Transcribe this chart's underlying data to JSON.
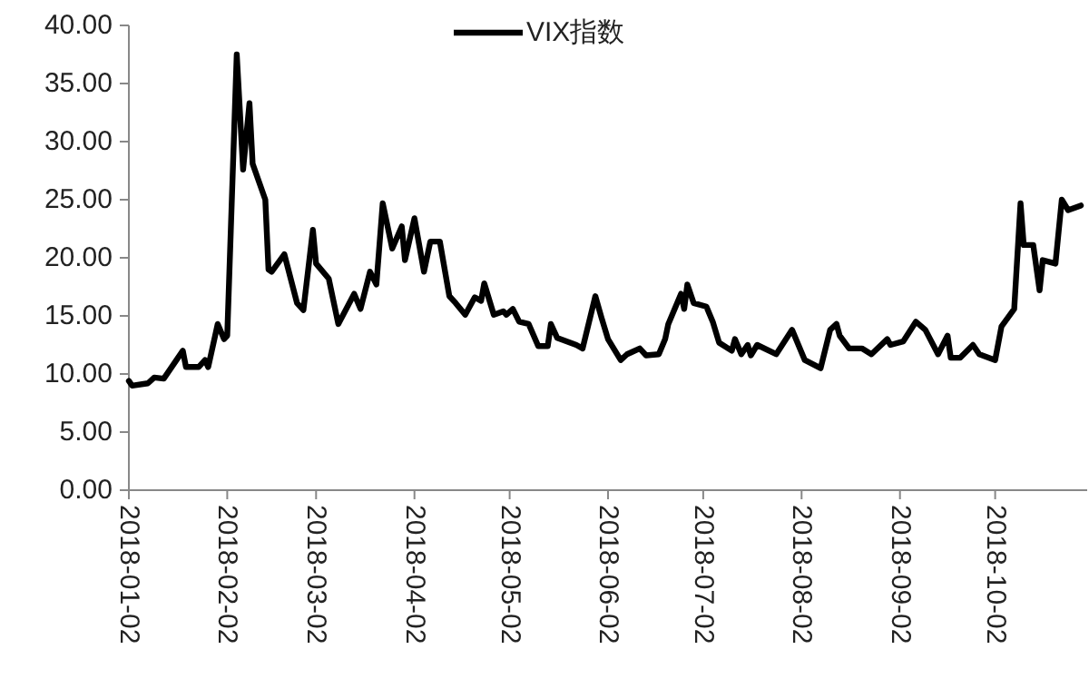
{
  "chart_data": {
    "type": "line",
    "legend": "top",
    "x": [
      "2018-01-02",
      "2018-01-03",
      "2018-01-08",
      "2018-01-10",
      "2018-01-13",
      "2018-01-19",
      "2018-01-20",
      "2018-01-24",
      "2018-01-26",
      "2018-01-27",
      "2018-01-30",
      "2018-02-01",
      "2018-02-02",
      "2018-02-05",
      "2018-02-07",
      "2018-02-09",
      "2018-02-10",
      "2018-02-14",
      "2018-02-15",
      "2018-02-16",
      "2018-02-20",
      "2018-02-24",
      "2018-02-26",
      "2018-03-01",
      "2018-03-02",
      "2018-03-06",
      "2018-03-09",
      "2018-03-14",
      "2018-03-16",
      "2018-03-19",
      "2018-03-21",
      "2018-03-23",
      "2018-03-26",
      "2018-03-29",
      "2018-03-30",
      "2018-04-02",
      "2018-04-05",
      "2018-04-07",
      "2018-04-10",
      "2018-04-13",
      "2018-04-15",
      "2018-04-18",
      "2018-04-21",
      "2018-04-23",
      "2018-04-24",
      "2018-04-27",
      "2018-04-30",
      "2018-05-01",
      "2018-05-03",
      "2018-05-05",
      "2018-05-08",
      "2018-05-11",
      "2018-05-14",
      "2018-05-15",
      "2018-05-17",
      "2018-05-23",
      "2018-05-25",
      "2018-05-29",
      "2018-05-31",
      "2018-06-02",
      "2018-06-06",
      "2018-06-08",
      "2018-06-12",
      "2018-06-14",
      "2018-06-18",
      "2018-06-20",
      "2018-06-21",
      "2018-06-25",
      "2018-06-26",
      "2018-06-27",
      "2018-06-29",
      "2018-07-03",
      "2018-07-05",
      "2018-07-07",
      "2018-07-11",
      "2018-07-12",
      "2018-07-14",
      "2018-07-16",
      "2018-07-17",
      "2018-07-19",
      "2018-07-25",
      "2018-07-30",
      "2018-08-01",
      "2018-08-03",
      "2018-08-08",
      "2018-08-11",
      "2018-08-13",
      "2018-08-14",
      "2018-08-17",
      "2018-08-21",
      "2018-08-24",
      "2018-08-29",
      "2018-08-30",
      "2018-09-03",
      "2018-09-07",
      "2018-09-10",
      "2018-09-14",
      "2018-09-17",
      "2018-09-18",
      "2018-09-21",
      "2018-09-25",
      "2018-09-27",
      "2018-10-02",
      "2018-10-04",
      "2018-10-08",
      "2018-10-10",
      "2018-10-11",
      "2018-10-14",
      "2018-10-16",
      "2018-10-17",
      "2018-10-21",
      "2018-10-23",
      "2018-10-25",
      "2018-10-26",
      "2018-10-29"
    ],
    "series": [
      {
        "name": "VIX指数",
        "color": "#000000",
        "values": [
          9.4,
          9.0,
          9.2,
          9.7,
          9.6,
          12.0,
          10.6,
          10.6,
          11.2,
          10.6,
          14.3,
          13.0,
          13.3,
          37.5,
          27.6,
          33.3,
          28.1,
          25.0,
          19.0,
          18.8,
          20.3,
          16.1,
          15.5,
          22.4,
          19.5,
          18.2,
          14.3,
          16.9,
          15.6,
          18.8,
          17.7,
          24.7,
          20.8,
          22.7,
          19.8,
          23.4,
          18.8,
          21.4,
          21.4,
          16.7,
          16.1,
          15.1,
          16.6,
          16.3,
          17.8,
          15.1,
          15.4,
          15.1,
          15.6,
          14.5,
          14.3,
          12.4,
          12.4,
          14.3,
          13.1,
          12.5,
          12.2,
          16.7,
          14.8,
          13.0,
          11.2,
          11.7,
          12.2,
          11.6,
          11.7,
          13.0,
          14.3,
          16.9,
          15.6,
          17.7,
          16.1,
          15.8,
          14.5,
          12.7,
          12.0,
          13.0,
          11.7,
          12.5,
          11.6,
          12.5,
          11.7,
          13.8,
          12.5,
          11.2,
          10.5,
          13.8,
          14.3,
          13.3,
          12.2,
          12.2,
          11.7,
          13.0,
          12.5,
          12.8,
          14.5,
          13.8,
          11.7,
          13.3,
          11.4,
          11.4,
          12.5,
          11.7,
          11.2,
          14.1,
          15.6,
          24.7,
          21.1,
          21.1,
          17.2,
          19.8,
          19.5,
          25.0,
          24.1,
          24.2,
          24.5
        ]
      }
    ],
    "xlim": [
      "2018-01-02",
      "2018-10-31"
    ],
    "xticks": [
      "2018-01-02",
      "2018-02-02",
      "2018-03-02",
      "2018-04-02",
      "2018-05-02",
      "2018-06-02",
      "2018-07-02",
      "2018-08-02",
      "2018-09-02",
      "2018-10-02"
    ],
    "ylim": [
      0,
      40
    ],
    "yticks": [
      {
        "value": 0,
        "label": "0.00"
      },
      {
        "value": 5,
        "label": "5.00"
      },
      {
        "value": 10,
        "label": "10.00"
      },
      {
        "value": 15,
        "label": "15.00"
      },
      {
        "value": 20,
        "label": "20.00"
      },
      {
        "value": 25,
        "label": "25.00"
      },
      {
        "value": 30,
        "label": "30.00"
      },
      {
        "value": 35,
        "label": "35.00"
      },
      {
        "value": 40,
        "label": "40.00"
      }
    ]
  }
}
